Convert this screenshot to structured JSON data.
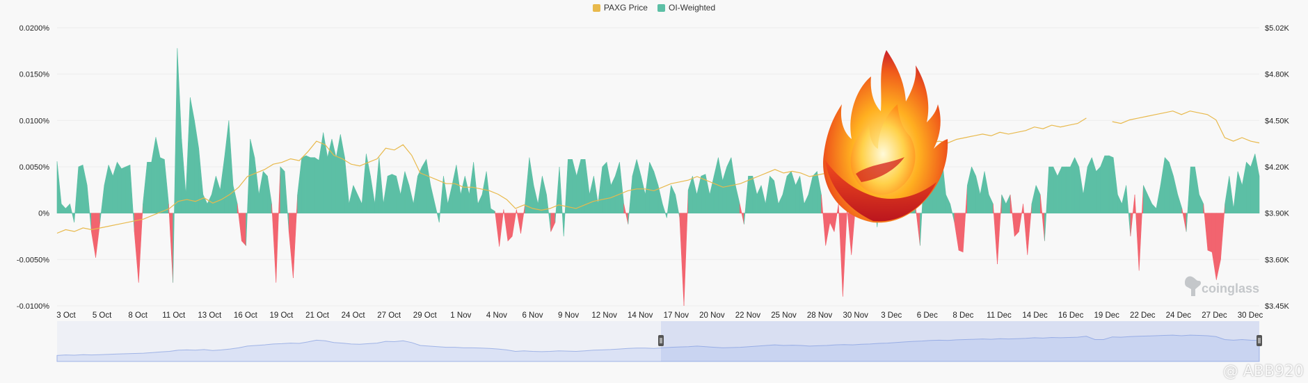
{
  "legend": {
    "price_label": "PAXG Price",
    "oi_label": "OI-Weighted"
  },
  "colors": {
    "price": "#e8b94c",
    "positive": "#5cbfa5",
    "negative": "#f2646f",
    "navigator_fill": "#dbe2f5",
    "navigator_line": "#9fb3e6"
  },
  "watermark": {
    "brand": "coinglass",
    "user": "@ ABB920"
  },
  "chart_data": {
    "type": "area",
    "title": "",
    "y_left": {
      "ticks": [
        "0.0200%",
        "0.0150%",
        "0.0100%",
        "0.0050%",
        "0%",
        "-0.0050%",
        "-0.0100%"
      ],
      "range": [
        -0.01,
        0.02
      ]
    },
    "y_right": {
      "ticks": [
        "$5.02K",
        "$4.80K",
        "$4.50K",
        "$4.20K",
        "$3.90K",
        "$3.60K",
        "$3.45K"
      ]
    },
    "x_ticks": [
      "3 Oct",
      "5 Oct",
      "8 Oct",
      "11 Oct",
      "13 Oct",
      "16 Oct",
      "19 Oct",
      "21 Oct",
      "24 Oct",
      "27 Oct",
      "29 Oct",
      "1 Nov",
      "4 Nov",
      "6 Nov",
      "9 Nov",
      "12 Nov",
      "14 Nov",
      "17 Nov",
      "20 Nov",
      "22 Nov",
      "25 Nov",
      "28 Nov",
      "30 Nov",
      "3 Dec",
      "6 Dec",
      "8 Dec",
      "11 Dec",
      "14 Dec",
      "16 Dec",
      "19 Dec",
      "22 Dec",
      "24 Dec",
      "27 Dec",
      "30 Dec"
    ],
    "series": [
      {
        "name": "OI-Weighted",
        "unit": "%",
        "values": [
          0.0056,
          0.001,
          0.0005,
          0.001,
          -0.001,
          0.005,
          0.0052,
          0.003,
          -0.002,
          -0.0048,
          -0.001,
          0.003,
          0.0052,
          0.004,
          0.0055,
          0.0048,
          0.005,
          0.0052,
          -0.002,
          -0.0075,
          0.001,
          0.0055,
          0.0055,
          0.0082,
          0.006,
          0.0058,
          0.001,
          -0.0075,
          0.0178,
          0.008,
          0.002,
          0.0125,
          0.01,
          0.007,
          0.002,
          0.001,
          0.002,
          0.004,
          0.0025,
          0.006,
          0.01,
          0.003,
          0.001,
          -0.003,
          -0.0035,
          0.008,
          0.006,
          0.002,
          0.0045,
          0.004,
          0.001,
          -0.0075,
          0.005,
          0.0045,
          -0.002,
          -0.007,
          0.002,
          0.006,
          0.0062,
          0.006,
          0.006,
          0.0057,
          0.0087,
          0.006,
          0.008,
          0.006,
          0.0085,
          0.006,
          0.001,
          0.003,
          0.002,
          0.001,
          0.0064,
          0.004,
          0.001,
          0.006,
          0.001,
          0.004,
          0.0042,
          0.004,
          0.002,
          0.0045,
          0.003,
          0.001,
          0.004,
          0.005,
          0.0058,
          0.003,
          0.001,
          -0.001,
          0.004,
          0.001,
          0.003,
          0.0052,
          0.002,
          0.004,
          0.002,
          0.0055,
          0.001,
          0.002,
          0.0045,
          0.0005,
          0.0002,
          -0.0036,
          0.0004,
          -0.003,
          -0.0025,
          0.0004,
          -0.0022,
          0.001,
          0.006,
          0.003,
          0.001,
          0.004,
          0.002,
          -0.002,
          -0.001,
          0.005,
          -0.0025,
          0.0058,
          0.0058,
          0.004,
          0.0058,
          0.0058,
          0.002,
          0.004,
          0.001,
          0.005,
          0.0055,
          0.003,
          0.004,
          0.0055,
          0.001,
          -0.0012,
          0.004,
          0.0058,
          0.004,
          0.002,
          0.0055,
          0.0045,
          0.003,
          0.001,
          -0.0005,
          0.003,
          0.002,
          -0.0005,
          -0.01,
          0.0025,
          0.004,
          0.002,
          0.004,
          0.0042,
          0.002,
          0.004,
          0.006,
          0.0035,
          0.005,
          0.006,
          0.003,
          0.001,
          -0.0012,
          0.004,
          0.004,
          0.002,
          0.003,
          0.001,
          0.004,
          0.0035,
          0.001,
          0.002,
          0.004,
          0.0045,
          0.003,
          0.004,
          0.001,
          0.002,
          0.004,
          0.0045,
          0.002,
          -0.0035,
          -0.001,
          -0.002,
          0.001,
          -0.009,
          0.0005,
          -0.0045,
          0.001,
          0.004,
          0.005,
          0.002,
          0.003,
          -0.0015,
          0.004,
          0.003,
          0.001,
          0.002,
          0.005,
          0.0045,
          0.0035,
          0.004,
          0.0005,
          -0.0035,
          0.005,
          0.006,
          0.005,
          0.0055,
          0.0064,
          0.002,
          0.001,
          -0.001,
          -0.004,
          -0.0042,
          0.003,
          0.005,
          0.004,
          0.002,
          0.0045,
          0.002,
          0.001,
          -0.0055,
          0.002,
          0.001,
          0.002,
          -0.0025,
          -0.002,
          0.001,
          -0.0045,
          0.001,
          0.003,
          0.002,
          -0.003,
          0.005,
          0.005,
          0.004,
          0.005,
          0.005,
          0.005,
          0.006,
          0.005,
          0.002,
          0.005,
          0.006,
          0.0045,
          0.005,
          0.0062,
          0.0062,
          0.006,
          0.002,
          0.001,
          0.003,
          -0.0025,
          0.002,
          -0.0062,
          0.003,
          0.002,
          0.001,
          0.0005,
          0.003,
          0.006,
          0.0055,
          0.004,
          0.002,
          0.0005,
          -0.002,
          0.005,
          0.005,
          0.002,
          0.001,
          -0.004,
          -0.0042,
          -0.0072,
          -0.005,
          0.001,
          0.004,
          0.0005,
          0.0045,
          0.003,
          0.0055,
          0.005,
          0.0064,
          0.004
        ]
      },
      {
        "name": "PAXG Price",
        "unit": "$K",
        "values": [
          3.86,
          3.88,
          3.87,
          3.89,
          3.88,
          3.89,
          3.9,
          3.91,
          3.92,
          3.93,
          3.94,
          3.96,
          3.98,
          4.0,
          4.04,
          4.05,
          4.04,
          4.06,
          4.03,
          4.05,
          4.08,
          4.12,
          4.18,
          4.2,
          4.22,
          4.25,
          4.26,
          4.28,
          4.27,
          4.32,
          4.38,
          4.36,
          4.3,
          4.28,
          4.25,
          4.24,
          4.26,
          4.28,
          4.34,
          4.33,
          4.36,
          4.3,
          4.2,
          4.18,
          4.16,
          4.14,
          4.14,
          4.12,
          4.12,
          4.11,
          4.1,
          4.08,
          4.05,
          4.0,
          4.02,
          4.0,
          3.99,
          4.0,
          4.02,
          4.01,
          4.0,
          4.02,
          4.04,
          4.05,
          4.06,
          4.08,
          4.1,
          4.11,
          4.11,
          4.1,
          4.12,
          4.14,
          4.15,
          4.16,
          4.18,
          4.16,
          4.14,
          4.12,
          4.13,
          4.14,
          4.16,
          4.18,
          4.2,
          4.22,
          4.2,
          4.21,
          4.2,
          4.18,
          4.19,
          4.2,
          4.22,
          4.23,
          4.22,
          4.24,
          4.25,
          4.27,
          4.28,
          4.3,
          4.32,
          4.34,
          4.35,
          4.37,
          4.38,
          4.37,
          4.39,
          4.4,
          4.41,
          4.42,
          4.41,
          4.43,
          4.42,
          4.43,
          4.44,
          4.46,
          4.45,
          4.47,
          4.46,
          4.47,
          4.48,
          4.51,
          null,
          null,
          4.49,
          4.48,
          4.5,
          4.51,
          4.52,
          4.53,
          4.54,
          4.55,
          4.53,
          4.55,
          4.54,
          4.53,
          4.5,
          4.4,
          4.38,
          4.4,
          4.38,
          4.37
        ]
      }
    ],
    "annotations": [
      "flame graphic overlay",
      "coinglass watermark"
    ],
    "grid": true,
    "legend_position": "top-center",
    "navigator": true
  }
}
